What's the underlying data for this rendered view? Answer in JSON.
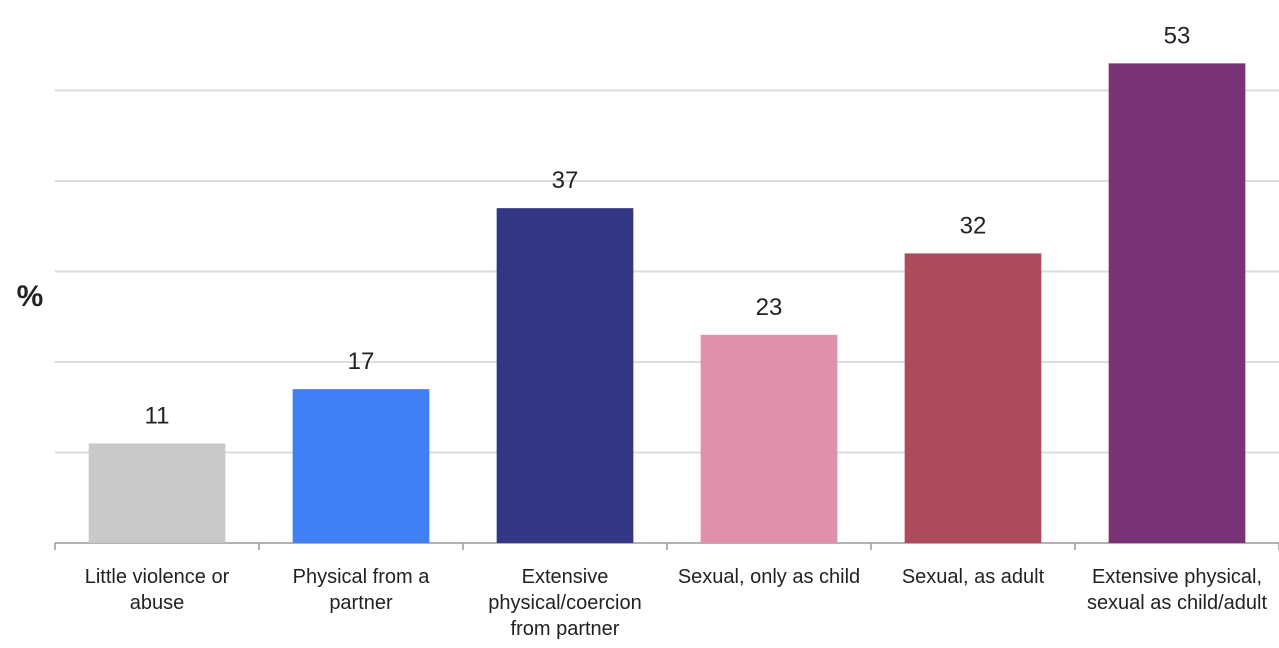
{
  "chart_data": {
    "type": "bar",
    "y_label": "%",
    "categories": [
      "Little violence or abuse",
      "Physical from a partner",
      "Extensive physical/coercion from partner",
      "Sexual, only as child",
      "Sexual, as adult",
      "Extensive physical, sexual as child/adult"
    ],
    "values": [
      11,
      17,
      37,
      23,
      32,
      53
    ],
    "colors": [
      "#c9c9c9",
      "#4080f4",
      "#323683",
      "#e090aa",
      "#ad4a5c",
      "#7a3277"
    ],
    "ylim": [
      0,
      60
    ],
    "yticks": [
      10,
      20,
      30,
      40,
      50
    ],
    "grid": true
  }
}
